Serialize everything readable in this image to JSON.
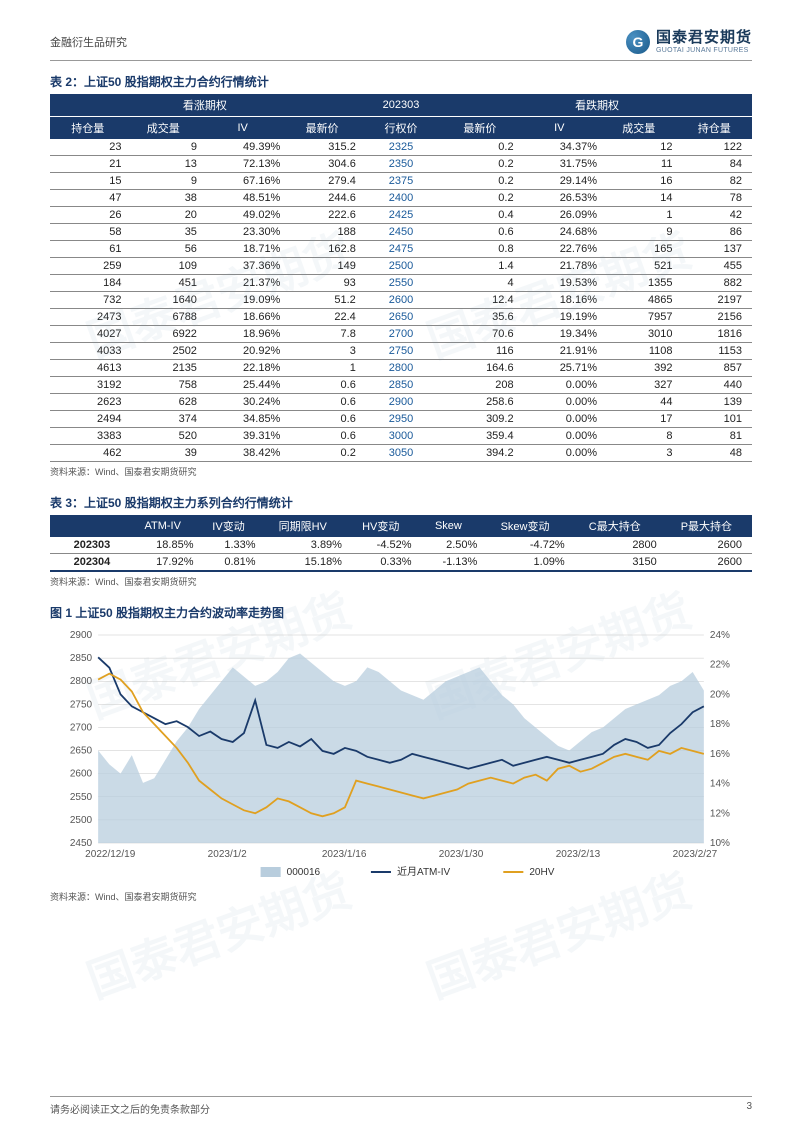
{
  "header": {
    "category": "金融衍生品研究",
    "logo_cn": "国泰君安期货",
    "logo_en": "GUOTAI JUNAN FUTURES"
  },
  "table2": {
    "title": "表 2：上证50 股指期权主力合约行情统计",
    "group_call": "看涨期权",
    "group_month": "202303",
    "group_put": "看跌期权",
    "cols": [
      "持仓量",
      "成交量",
      "IV",
      "最新价",
      "行权价",
      "最新价",
      "IV",
      "成交量",
      "持仓量"
    ],
    "rows": [
      [
        "23",
        "9",
        "49.39%",
        "315.2",
        "2325",
        "0.2",
        "34.37%",
        "12",
        "122"
      ],
      [
        "21",
        "13",
        "72.13%",
        "304.6",
        "2350",
        "0.2",
        "31.75%",
        "11",
        "84"
      ],
      [
        "15",
        "9",
        "67.16%",
        "279.4",
        "2375",
        "0.2",
        "29.14%",
        "16",
        "82"
      ],
      [
        "47",
        "38",
        "48.51%",
        "244.6",
        "2400",
        "0.2",
        "26.53%",
        "14",
        "78"
      ],
      [
        "26",
        "20",
        "49.02%",
        "222.6",
        "2425",
        "0.4",
        "26.09%",
        "1",
        "42"
      ],
      [
        "58",
        "35",
        "23.30%",
        "188",
        "2450",
        "0.6",
        "24.68%",
        "9",
        "86"
      ],
      [
        "61",
        "56",
        "18.71%",
        "162.8",
        "2475",
        "0.8",
        "22.76%",
        "165",
        "137"
      ],
      [
        "259",
        "109",
        "37.36%",
        "149",
        "2500",
        "1.4",
        "21.78%",
        "521",
        "455"
      ],
      [
        "184",
        "451",
        "21.37%",
        "93",
        "2550",
        "4",
        "19.53%",
        "1355",
        "882"
      ],
      [
        "732",
        "1640",
        "19.09%",
        "51.2",
        "2600",
        "12.4",
        "18.16%",
        "4865",
        "2197"
      ],
      [
        "2473",
        "6788",
        "18.66%",
        "22.4",
        "2650",
        "35.6",
        "19.19%",
        "7957",
        "2156"
      ],
      [
        "4027",
        "6922",
        "18.96%",
        "7.8",
        "2700",
        "70.6",
        "19.34%",
        "3010",
        "1816"
      ],
      [
        "4033",
        "2502",
        "20.92%",
        "3",
        "2750",
        "116",
        "21.91%",
        "1108",
        "1153"
      ],
      [
        "4613",
        "2135",
        "22.18%",
        "1",
        "2800",
        "164.6",
        "25.71%",
        "392",
        "857"
      ],
      [
        "3192",
        "758",
        "25.44%",
        "0.6",
        "2850",
        "208",
        "0.00%",
        "327",
        "440"
      ],
      [
        "2623",
        "628",
        "30.24%",
        "0.6",
        "2900",
        "258.6",
        "0.00%",
        "44",
        "139"
      ],
      [
        "2494",
        "374",
        "34.85%",
        "0.6",
        "2950",
        "309.2",
        "0.00%",
        "17",
        "101"
      ],
      [
        "3383",
        "520",
        "39.31%",
        "0.6",
        "3000",
        "359.4",
        "0.00%",
        "8",
        "81"
      ],
      [
        "462",
        "39",
        "38.42%",
        "0.2",
        "3050",
        "394.2",
        "0.00%",
        "3",
        "48"
      ]
    ],
    "source": "资料来源：Wind、国泰君安期货研究"
  },
  "table3": {
    "title": "表 3：上证50 股指期权主力系列合约行情统计",
    "cols": [
      "",
      "ATM-IV",
      "IV变动",
      "同期限HV",
      "HV变动",
      "Skew",
      "Skew变动",
      "C最大持仓",
      "P最大持仓"
    ],
    "rows": [
      [
        "202303",
        "18.85%",
        "1.33%",
        "3.89%",
        "-4.52%",
        "2.50%",
        "-4.72%",
        "2800",
        "2600"
      ],
      [
        "202304",
        "17.92%",
        "0.81%",
        "15.18%",
        "0.33%",
        "-1.13%",
        "1.09%",
        "3150",
        "2600"
      ]
    ],
    "source": "资料来源：Wind、国泰君安期货研究"
  },
  "chart": {
    "title": "图 1 上证50 股指期权主力合约波动率走势图",
    "source": "资料来源：Wind、国泰君安期货研究",
    "left_axis": {
      "min": 2450,
      "max": 2900,
      "step": 50,
      "ticks": [
        2450,
        2500,
        2550,
        2600,
        2650,
        2700,
        2750,
        2800,
        2850,
        2900
      ]
    },
    "right_axis": {
      "min": 10,
      "max": 24,
      "step": 2,
      "ticks": [
        10,
        12,
        14,
        16,
        18,
        20,
        22,
        24
      ],
      "suffix": "%"
    },
    "x_labels": [
      "2022/12/19",
      "2023/1/2",
      "2023/1/16",
      "2023/1/30",
      "2023/2/13",
      "2023/2/27"
    ],
    "legend": [
      {
        "label": "000016",
        "type": "area",
        "color": "#8daeca"
      },
      {
        "label": "近月ATM-IV",
        "type": "line",
        "color": "#1a3a6a"
      },
      {
        "label": "20HV",
        "type": "line",
        "color": "#e0a020"
      }
    ],
    "colors": {
      "area_fill": "#b8cddd",
      "area_stroke": "#6a8aa8",
      "line_iv": "#1a3a6a",
      "line_hv": "#e0a020",
      "grid": "#c8c8c8",
      "axis_text": "#555"
    },
    "series": {
      "n_points": 55,
      "area": [
        2650,
        2620,
        2600,
        2640,
        2580,
        2590,
        2630,
        2670,
        2700,
        2740,
        2770,
        2800,
        2830,
        2810,
        2790,
        2800,
        2820,
        2850,
        2860,
        2840,
        2820,
        2800,
        2790,
        2800,
        2830,
        2820,
        2800,
        2780,
        2770,
        2760,
        2780,
        2800,
        2810,
        2820,
        2830,
        2800,
        2770,
        2750,
        2720,
        2700,
        2680,
        2660,
        2650,
        2670,
        2690,
        2700,
        2720,
        2740,
        2750,
        2760,
        2770,
        2790,
        2800,
        2820,
        2780
      ],
      "iv": [
        22.5,
        21.8,
        20.0,
        19.2,
        18.8,
        18.4,
        18.0,
        18.2,
        17.8,
        17.2,
        17.5,
        17.0,
        16.8,
        17.4,
        19.6,
        16.6,
        16.4,
        16.8,
        16.5,
        17.0,
        16.2,
        16.0,
        16.4,
        16.2,
        15.8,
        15.6,
        15.4,
        15.6,
        16.0,
        15.8,
        15.6,
        15.4,
        15.2,
        15.0,
        15.2,
        15.4,
        15.6,
        15.2,
        15.4,
        15.6,
        15.8,
        15.6,
        15.4,
        15.6,
        15.8,
        16.0,
        16.6,
        17.0,
        16.8,
        16.4,
        16.6,
        17.4,
        18.0,
        18.8,
        19.2
      ],
      "hv": [
        21.0,
        21.4,
        21.0,
        20.2,
        18.8,
        18.0,
        17.2,
        16.4,
        15.4,
        14.2,
        13.6,
        13.0,
        12.6,
        12.2,
        12.0,
        12.4,
        13.0,
        12.8,
        12.4,
        12.0,
        11.8,
        12.0,
        12.4,
        14.2,
        14.0,
        13.8,
        13.6,
        13.4,
        13.2,
        13.0,
        13.2,
        13.4,
        13.6,
        14.0,
        14.2,
        14.4,
        14.2,
        14.0,
        14.4,
        14.6,
        14.2,
        15.0,
        15.2,
        14.8,
        15.0,
        15.4,
        15.8,
        16.0,
        15.8,
        15.6,
        16.2,
        16.0,
        16.4,
        16.2,
        16.0
      ]
    }
  },
  "footer": {
    "disclaimer": "请务必阅读正文之后的免责条款部分",
    "page": "3"
  },
  "watermark": "国泰君安期货"
}
